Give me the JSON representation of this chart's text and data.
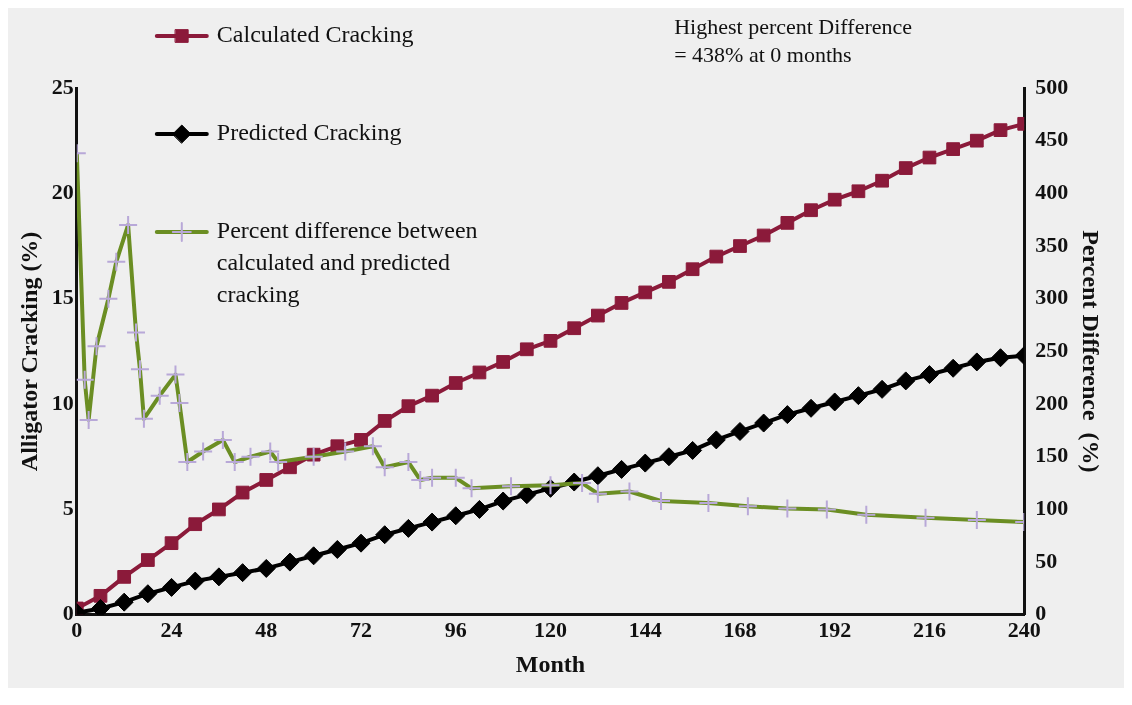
{
  "chart_data": {
    "type": "line",
    "xlabel": "Month",
    "ylabel": "Alligator Cracking (%)",
    "y2label": "Percent Difference  (%)",
    "xlim": [
      0,
      240
    ],
    "xticks": [
      0,
      24,
      48,
      72,
      96,
      120,
      144,
      168,
      192,
      216,
      240
    ],
    "ylim": [
      0,
      25
    ],
    "yticks": [
      0,
      5,
      10,
      15,
      20,
      25
    ],
    "y2lim": [
      0,
      500
    ],
    "y2ticks": [
      0,
      50,
      100,
      150,
      200,
      250,
      300,
      350,
      400,
      450,
      500
    ],
    "grid": false,
    "legend": "top left",
    "annotations": [
      "Highest percent Difference\n= 438% at 0 months"
    ],
    "series": [
      {
        "name": "Calculated Cracking",
        "color": "#8b1a3a",
        "marker": "square",
        "x": [
          0,
          6,
          12,
          18,
          24,
          30,
          36,
          42,
          48,
          54,
          60,
          66,
          72,
          78,
          84,
          90,
          96,
          102,
          108,
          114,
          120,
          126,
          132,
          138,
          144,
          150,
          156,
          162,
          168,
          174,
          180,
          186,
          192,
          198,
          204,
          210,
          216,
          222,
          228,
          234,
          240
        ],
        "values": [
          0.3,
          0.9,
          1.8,
          2.6,
          3.4,
          4.3,
          5.0,
          5.8,
          6.4,
          7.0,
          7.6,
          8.0,
          8.3,
          9.2,
          9.9,
          10.4,
          11.0,
          11.5,
          12.0,
          12.6,
          13.0,
          13.6,
          14.2,
          14.8,
          15.3,
          15.8,
          16.4,
          17.0,
          17.5,
          18.0,
          18.6,
          19.2,
          19.7,
          20.1,
          20.6,
          21.2,
          21.7,
          22.1,
          22.5,
          23.0,
          23.3
        ]
      },
      {
        "name": "Predicted Cracking",
        "color": "#000000",
        "marker": "diamond",
        "x": [
          0,
          6,
          12,
          18,
          24,
          30,
          36,
          42,
          48,
          54,
          60,
          66,
          72,
          78,
          84,
          90,
          96,
          102,
          108,
          114,
          120,
          126,
          132,
          138,
          144,
          150,
          156,
          162,
          168,
          174,
          180,
          186,
          192,
          198,
          204,
          210,
          216,
          222,
          228,
          234,
          240
        ],
        "values": [
          0.1,
          0.3,
          0.6,
          1.0,
          1.3,
          1.6,
          1.8,
          2.0,
          2.2,
          2.5,
          2.8,
          3.1,
          3.4,
          3.8,
          4.1,
          4.4,
          4.7,
          5.0,
          5.4,
          5.7,
          6.0,
          6.3,
          6.6,
          6.9,
          7.2,
          7.5,
          7.8,
          8.3,
          8.7,
          9.1,
          9.5,
          9.8,
          10.1,
          10.4,
          10.7,
          11.1,
          11.4,
          11.7,
          12.0,
          12.2,
          12.3
        ]
      },
      {
        "name": "Percent difference between calculated and predicted cracking",
        "color": "#6b8e23",
        "marker": "cross",
        "axis": "y2",
        "x": [
          0,
          2,
          3,
          5,
          8,
          10,
          13,
          15,
          16,
          17,
          21,
          25,
          26,
          28,
          32,
          37,
          40,
          44,
          49,
          51,
          60,
          68,
          75,
          78,
          84,
          87,
          90,
          96,
          100,
          110,
          120,
          128,
          132,
          140,
          148,
          160,
          170,
          180,
          190,
          200,
          215,
          228,
          240
        ],
        "values": [
          438,
          223,
          185,
          255,
          300,
          335,
          370,
          268,
          233,
          186,
          208,
          228,
          201,
          145,
          155,
          166,
          145,
          150,
          155,
          145,
          150,
          155,
          160,
          140,
          145,
          128,
          130,
          130,
          120,
          122,
          123,
          125,
          115,
          117,
          108,
          106,
          103,
          101,
          100,
          95,
          92,
          90,
          88
        ]
      }
    ]
  }
}
